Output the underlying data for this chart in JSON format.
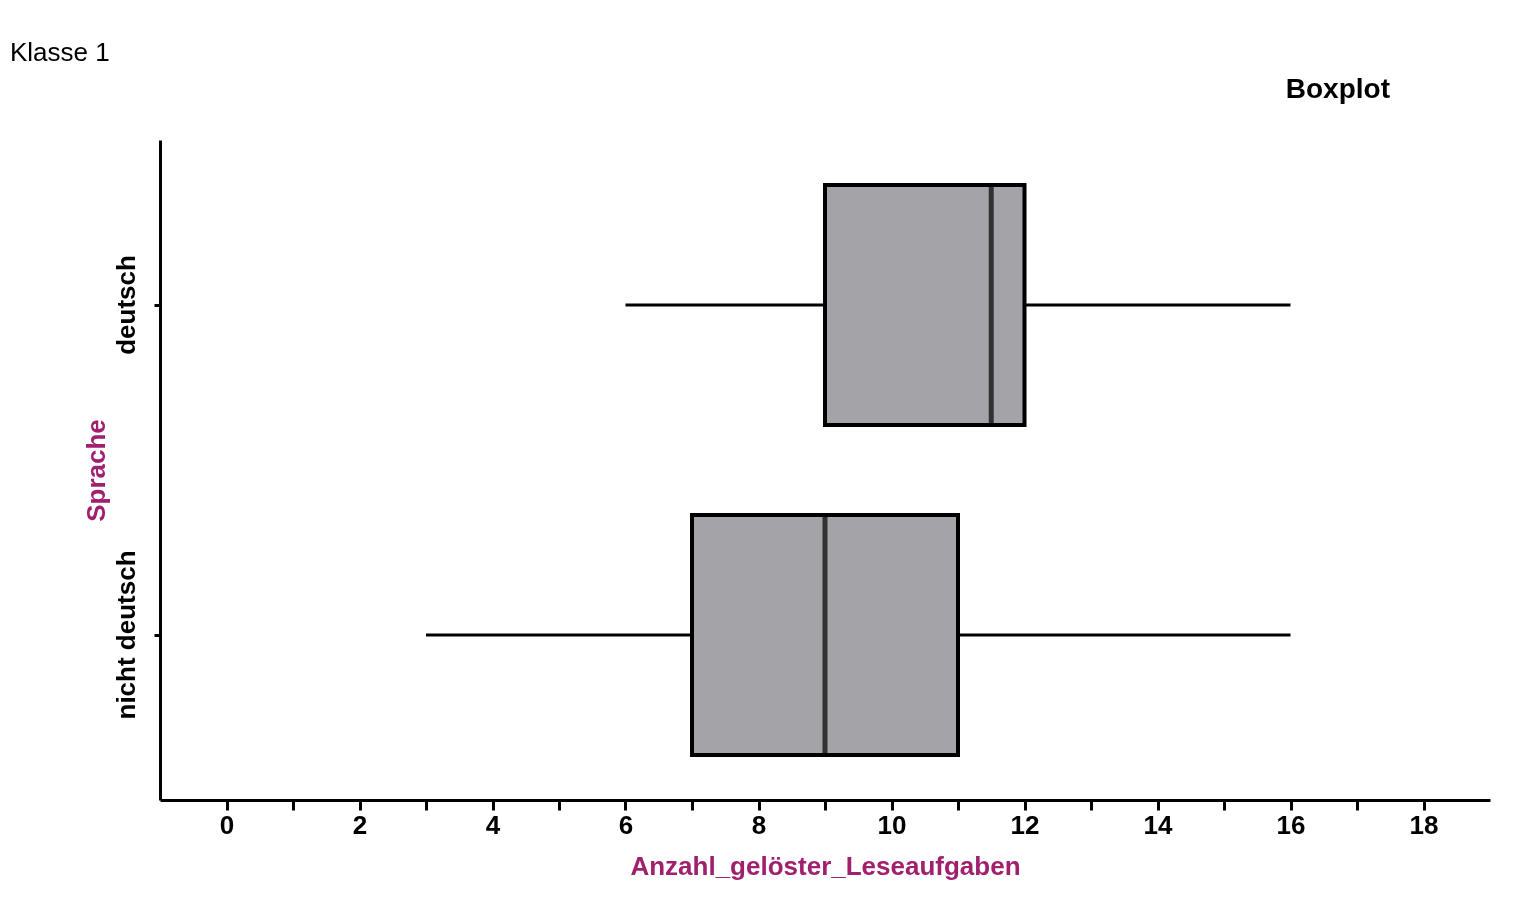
{
  "chart_data": {
    "type": "box",
    "title": "Klasse 1",
    "xlabel": "Anzahl_gelöster_Leseaufgaben",
    "ylabel": "Sprache",
    "orientation": "horizontal",
    "categories": [
      "deutsch",
      "nicht deutsch"
    ],
    "boxes": [
      {
        "low": 6,
        "q1": 9,
        "median": 11.5,
        "q3": 12,
        "high": 16
      },
      {
        "low": 3,
        "q1": 7,
        "median": 9,
        "q3": 11,
        "high": 16
      }
    ],
    "color": "#a4a3a8",
    "xlim": [
      -1,
      19
    ],
    "xticks": [
      0,
      {
        "value": 1,
        "label": null
      },
      2,
      {
        "value": 3,
        "label": null
      },
      4,
      {
        "value": 5,
        "label": null
      },
      6,
      {
        "value": 7,
        "label": null
      },
      8,
      {
        "value": 9,
        "label": null
      },
      10,
      {
        "value": 11,
        "label": null
      },
      12,
      {
        "value": 13,
        "label": null
      },
      14,
      {
        "value": 15,
        "label": null
      },
      16,
      {
        "value": 17,
        "label": null
      },
      18
    ],
    "grid": false,
    "annotations": [
      "Boxplot"
    ]
  }
}
